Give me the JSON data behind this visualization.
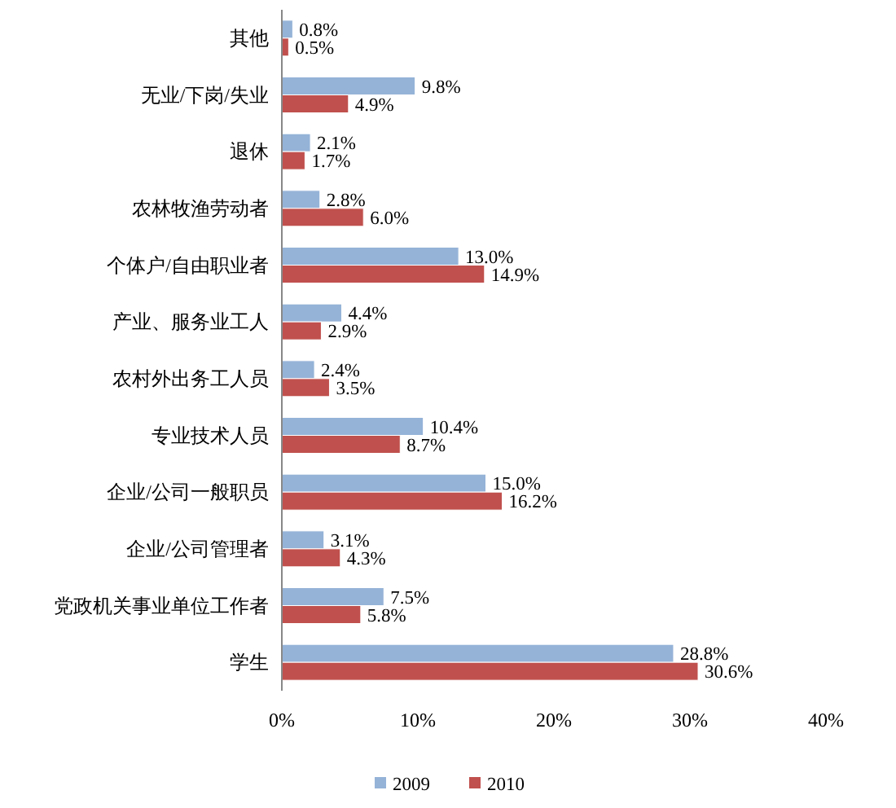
{
  "chart_data": {
    "type": "bar",
    "orientation": "horizontal",
    "categories": [
      "其他",
      "无业/下岗/失业",
      "退休",
      "农林牧渔劳动者",
      "个体户/自由职业者",
      "产业、服务业工人",
      "农村外出务工人员",
      "专业技术人员",
      "企业/公司一般职员",
      "企业/公司管理者",
      "党政机关事业单位工作者",
      "学生"
    ],
    "series": [
      {
        "name": "2009",
        "color": "#95b3d7",
        "values": [
          0.8,
          9.8,
          2.1,
          2.8,
          13.0,
          4.4,
          2.4,
          10.4,
          15.0,
          3.1,
          7.5,
          28.8
        ],
        "value_labels": [
          "0.8%",
          "9.8%",
          "2.1%",
          "2.8%",
          "13.0%",
          "4.4%",
          "2.4%",
          "10.4%",
          "15.0%",
          "3.1%",
          "7.5%",
          "28.8%"
        ]
      },
      {
        "name": "2010",
        "color": "#c0504d",
        "values": [
          0.5,
          4.9,
          1.7,
          6.0,
          14.9,
          2.9,
          3.5,
          8.7,
          16.2,
          4.3,
          5.8,
          30.6
        ],
        "value_labels": [
          "0.5%",
          "4.9%",
          "1.7%",
          "6.0%",
          "14.9%",
          "2.9%",
          "3.5%",
          "8.7%",
          "16.2%",
          "4.3%",
          "5.8%",
          "30.6%"
        ]
      }
    ],
    "xlim": [
      0,
      40
    ],
    "xticks": [
      {
        "value": 0,
        "label": "0%"
      },
      {
        "value": 10,
        "label": "10%"
      },
      {
        "value": 20,
        "label": "20%"
      },
      {
        "value": 30,
        "label": "30%"
      },
      {
        "value": 40,
        "label": "40%"
      }
    ],
    "legend": "bottom",
    "grid": false
  }
}
